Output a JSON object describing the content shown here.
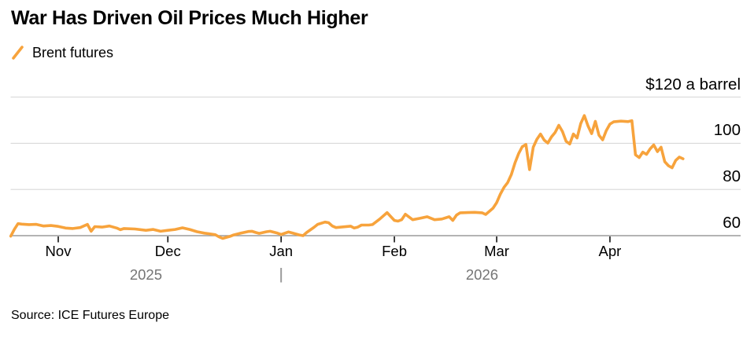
{
  "header": {
    "title": "War Has Driven Oil Prices Much Higher"
  },
  "legend": {
    "items": [
      {
        "label": "Brent futures",
        "marker": "orange-slash",
        "color": "#F7A33C"
      }
    ]
  },
  "source": {
    "text": "Source: ICE Futures Europe"
  },
  "colors": {
    "line": "#F7A33C",
    "grid": "#D9D9D9",
    "axis": "#9B9B9B",
    "tick": "#111111",
    "year_label": "#757575",
    "text": "#000000",
    "background": "#FFFFFF"
  },
  "chart_data": {
    "type": "line",
    "title": "War Has Driven Oil Prices Much Higher",
    "xlabel": "",
    "ylabel": "$ a barrel",
    "unit_label": "$120 a barrel",
    "grid": true,
    "legend_position": "top-left",
    "x_range": [
      "2025-10-19",
      "2026-04-21"
    ],
    "ylim": [
      60,
      120
    ],
    "y_ticks": [
      {
        "value": 120,
        "label": "$120 a barrel"
      },
      {
        "value": 100,
        "label": "100"
      },
      {
        "value": 80,
        "label": "80"
      },
      {
        "value": 60,
        "label": "60"
      }
    ],
    "x_ticks": [
      {
        "date": "2025-11-01",
        "label": "Nov"
      },
      {
        "date": "2025-12-01",
        "label": "Dec"
      },
      {
        "date": "2026-01-01",
        "label": "Jan"
      },
      {
        "date": "2026-02-01",
        "label": "Feb"
      },
      {
        "date": "2026-03-01",
        "label": "Mar"
      },
      {
        "date": "2026-04-01",
        "label": "Apr"
      }
    ],
    "years": [
      {
        "label": "2025",
        "span_start": "2025-10-19",
        "span_end": "2026-01-01",
        "divider": false
      },
      {
        "label": "2026",
        "span_start": "2026-01-01",
        "span_end": "2026-04-21",
        "divider": true
      }
    ],
    "series": [
      {
        "name": "Brent futures",
        "color": "#F7A33C",
        "points": [
          [
            "2025-10-19",
            59.8
          ],
          [
            "2025-10-20",
            62.8
          ],
          [
            "2025-10-21",
            65.2
          ],
          [
            "2025-10-22",
            65.0
          ],
          [
            "2025-10-24",
            64.8
          ],
          [
            "2025-10-26",
            64.9
          ],
          [
            "2025-10-28",
            64.2
          ],
          [
            "2025-10-30",
            64.4
          ],
          [
            "2025-11-01",
            64.0
          ],
          [
            "2025-11-03",
            63.3
          ],
          [
            "2025-11-05",
            63.1
          ],
          [
            "2025-11-07",
            63.5
          ],
          [
            "2025-11-09",
            64.9
          ],
          [
            "2025-11-10",
            61.9
          ],
          [
            "2025-11-11",
            63.9
          ],
          [
            "2025-11-13",
            63.7
          ],
          [
            "2025-11-15",
            64.2
          ],
          [
            "2025-11-17",
            63.3
          ],
          [
            "2025-11-18",
            62.6
          ],
          [
            "2025-11-19",
            63.1
          ],
          [
            "2025-11-22",
            62.9
          ],
          [
            "2025-11-25",
            62.3
          ],
          [
            "2025-11-27",
            62.7
          ],
          [
            "2025-11-29",
            61.9
          ],
          [
            "2025-12-01",
            62.3
          ],
          [
            "2025-12-03",
            62.7
          ],
          [
            "2025-12-05",
            63.4
          ],
          [
            "2025-12-07",
            62.7
          ],
          [
            "2025-12-09",
            61.7
          ],
          [
            "2025-12-11",
            61.1
          ],
          [
            "2025-12-12",
            60.9
          ],
          [
            "2025-12-14",
            60.4
          ],
          [
            "2025-12-15",
            59.5
          ],
          [
            "2025-12-16",
            58.8
          ],
          [
            "2025-12-18",
            59.7
          ],
          [
            "2025-12-19",
            60.3
          ],
          [
            "2025-12-21",
            61.1
          ],
          [
            "2025-12-23",
            61.8
          ],
          [
            "2025-12-24",
            61.9
          ],
          [
            "2025-12-25",
            61.4
          ],
          [
            "2025-12-26",
            61.0
          ],
          [
            "2025-12-28",
            61.7
          ],
          [
            "2025-12-29",
            61.9
          ],
          [
            "2025-12-31",
            61.1
          ],
          [
            "2026-01-01",
            60.5
          ],
          [
            "2026-01-03",
            61.6
          ],
          [
            "2026-01-04",
            61.2
          ],
          [
            "2026-01-06",
            60.3
          ],
          [
            "2026-01-07",
            60.0
          ],
          [
            "2026-01-08",
            61.4
          ],
          [
            "2026-01-10",
            63.6
          ],
          [
            "2026-01-11",
            64.9
          ],
          [
            "2026-01-13",
            65.9
          ],
          [
            "2026-01-14",
            65.6
          ],
          [
            "2026-01-15",
            64.2
          ],
          [
            "2026-01-16",
            63.5
          ],
          [
            "2026-01-18",
            63.8
          ],
          [
            "2026-01-20",
            64.1
          ],
          [
            "2026-01-21",
            63.3
          ],
          [
            "2026-01-22",
            63.7
          ],
          [
            "2026-01-23",
            64.6
          ],
          [
            "2026-01-25",
            64.6
          ],
          [
            "2026-01-26",
            64.8
          ],
          [
            "2026-01-28",
            67.2
          ],
          [
            "2026-01-30",
            70.0
          ],
          [
            "2026-01-31",
            68.3
          ],
          [
            "2026-02-01",
            66.6
          ],
          [
            "2026-02-02",
            66.3
          ],
          [
            "2026-02-03",
            66.9
          ],
          [
            "2026-02-04",
            69.3
          ],
          [
            "2026-02-06",
            66.9
          ],
          [
            "2026-02-08",
            67.5
          ],
          [
            "2026-02-10",
            68.2
          ],
          [
            "2026-02-12",
            66.9
          ],
          [
            "2026-02-14",
            67.2
          ],
          [
            "2026-02-16",
            68.2
          ],
          [
            "2026-02-17",
            66.6
          ],
          [
            "2026-02-18",
            68.9
          ],
          [
            "2026-02-19",
            69.9
          ],
          [
            "2026-02-21",
            70.0
          ],
          [
            "2026-02-23",
            70.1
          ],
          [
            "2026-02-25",
            69.9
          ],
          [
            "2026-02-26",
            69.2
          ],
          [
            "2026-02-28",
            71.9
          ],
          [
            "2026-03-01",
            74.3
          ],
          [
            "2026-03-02",
            78.0
          ],
          [
            "2026-03-03",
            80.9
          ],
          [
            "2026-03-04",
            83.0
          ],
          [
            "2026-03-05",
            86.4
          ],
          [
            "2026-03-06",
            91.5
          ],
          [
            "2026-03-07",
            95.5
          ],
          [
            "2026-03-08",
            98.5
          ],
          [
            "2026-03-09",
            99.5
          ],
          [
            "2026-03-10",
            88.6
          ],
          [
            "2026-03-11",
            98.3
          ],
          [
            "2026-03-12",
            101.7
          ],
          [
            "2026-03-13",
            104.0
          ],
          [
            "2026-03-14",
            101.4
          ],
          [
            "2026-03-15",
            100.1
          ],
          [
            "2026-03-16",
            102.8
          ],
          [
            "2026-03-17",
            104.7
          ],
          [
            "2026-03-18",
            107.8
          ],
          [
            "2026-03-19",
            105.1
          ],
          [
            "2026-03-20",
            100.9
          ],
          [
            "2026-03-21",
            99.7
          ],
          [
            "2026-03-22",
            104.0
          ],
          [
            "2026-03-23",
            102.3
          ],
          [
            "2026-03-24",
            108.5
          ],
          [
            "2026-03-25",
            112.0
          ],
          [
            "2026-03-26",
            107.5
          ],
          [
            "2026-03-27",
            104.2
          ],
          [
            "2026-03-28",
            109.5
          ],
          [
            "2026-03-29",
            103.5
          ],
          [
            "2026-03-30",
            101.5
          ],
          [
            "2026-03-31",
            105.5
          ],
          [
            "2026-04-01",
            108.3
          ],
          [
            "2026-04-02",
            109.3
          ],
          [
            "2026-04-04",
            109.6
          ],
          [
            "2026-04-06",
            109.4
          ],
          [
            "2026-04-07",
            109.8
          ],
          [
            "2026-04-08",
            95.0
          ],
          [
            "2026-04-09",
            93.8
          ],
          [
            "2026-04-10",
            96.2
          ],
          [
            "2026-04-11",
            95.2
          ],
          [
            "2026-04-12",
            97.6
          ],
          [
            "2026-04-13",
            99.3
          ],
          [
            "2026-04-14",
            96.4
          ],
          [
            "2026-04-15",
            98.3
          ],
          [
            "2026-04-16",
            92.0
          ],
          [
            "2026-04-17",
            90.3
          ],
          [
            "2026-04-18",
            89.4
          ],
          [
            "2026-04-19",
            92.6
          ],
          [
            "2026-04-20",
            94.0
          ],
          [
            "2026-04-21",
            93.3
          ]
        ]
      }
    ]
  }
}
